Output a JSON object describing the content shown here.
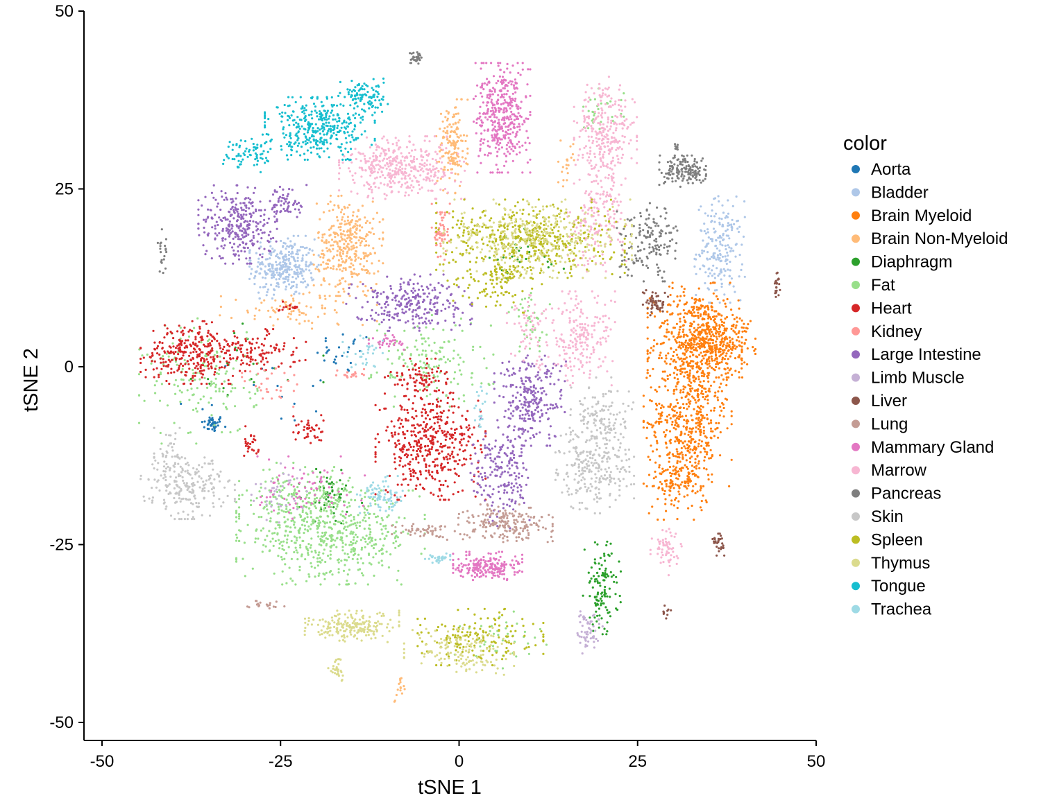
{
  "chart_data": {
    "type": "scatter",
    "title": "",
    "xlabel": "tSNE 1",
    "ylabel": "tSNE 2",
    "xlim": [
      -52.5,
      50
    ],
    "ylim": [
      -52.5,
      50
    ],
    "x_ticks": [
      -50,
      -25,
      0,
      25,
      50
    ],
    "y_ticks": [
      -50,
      -25,
      0,
      25,
      50
    ],
    "x_tick_labels": [
      "-50",
      "-25",
      "0",
      "25",
      "50"
    ],
    "y_tick_labels": [
      "-50",
      "-25",
      "0",
      "25",
      "50"
    ],
    "grid": false,
    "legend": {
      "title": "color",
      "placement": "right"
    },
    "series": [
      {
        "name": "Aorta",
        "color": "#1f77b4",
        "clusters": [
          {
            "center": [
              -34.5,
              -8
            ],
            "spread": [
              0.8,
              0.6
            ],
            "n": 40
          },
          {
            "center": [
              -16,
              2
            ],
            "spread": [
              2,
              1.5
            ],
            "n": 25
          },
          {
            "center": [
              -28,
              -4
            ],
            "spread": [
              6,
              3
            ],
            "n": 15
          }
        ]
      },
      {
        "name": "Bladder",
        "color": "#aec7e8",
        "clusters": [
          {
            "center": [
              -24.5,
              14
            ],
            "spread": [
              2.2,
              2
            ],
            "n": 300
          },
          {
            "center": [
              36.5,
              16.5
            ],
            "spread": [
              1.6,
              3.4
            ],
            "n": 200
          }
        ]
      },
      {
        "name": "Brain Myeloid",
        "color": "#ff7f0e",
        "clusters": [
          {
            "center": [
              33,
              3
            ],
            "spread": [
              3,
              4
            ],
            "n": 500
          },
          {
            "center": [
              32,
              -8
            ],
            "spread": [
              2.8,
              4
            ],
            "n": 400
          },
          {
            "center": [
              31,
              -16
            ],
            "spread": [
              2,
              2.5
            ],
            "n": 150
          },
          {
            "center": [
              36,
              4
            ],
            "spread": [
              2.5,
              2.5
            ],
            "n": 250
          }
        ]
      },
      {
        "name": "Brain Non-Myeloid",
        "color": "#ffbb78",
        "clusters": [
          {
            "center": [
              -15.5,
              17
            ],
            "spread": [
              2.2,
              3.2
            ],
            "n": 350
          },
          {
            "center": [
              -1,
              31
            ],
            "spread": [
              1,
              3
            ],
            "n": 150
          },
          {
            "center": [
              -22.5,
              8
            ],
            "spread": [
              5,
              1.2
            ],
            "n": 80
          },
          {
            "center": [
              15,
              28.5
            ],
            "spread": [
              0.5,
              1.5
            ],
            "n": 20
          },
          {
            "center": [
              -8.5,
              -45.5
            ],
            "spread": [
              0.4,
              1
            ],
            "n": 15
          }
        ]
      },
      {
        "name": "Diaphragm",
        "color": "#2ca02c",
        "clusters": [
          {
            "center": [
              20,
              -31
            ],
            "spread": [
              1.2,
              3
            ],
            "n": 120
          },
          {
            "center": [
              -18,
              -18
            ],
            "spread": [
              2,
              2
            ],
            "n": 50
          },
          {
            "center": [
              8,
              15
            ],
            "spread": [
              4,
              2
            ],
            "n": 30
          },
          {
            "center": [
              -30,
              0
            ],
            "spread": [
              5,
              3
            ],
            "n": 20
          }
        ]
      },
      {
        "name": "Fat",
        "color": "#98df8a",
        "clusters": [
          {
            "center": [
              -18,
              -24
            ],
            "spread": [
              6,
              3
            ],
            "n": 500
          },
          {
            "center": [
              -22,
              -19
            ],
            "spread": [
              4,
              2.5
            ],
            "n": 200
          },
          {
            "center": [
              -4,
              1
            ],
            "spread": [
              4,
              3
            ],
            "n": 150
          },
          {
            "center": [
              -36,
              -2
            ],
            "spread": [
              4,
              4
            ],
            "n": 150
          },
          {
            "center": [
              20,
              36
            ],
            "spread": [
              1.5,
              1.5
            ],
            "n": 30
          },
          {
            "center": [
              10,
              6
            ],
            "spread": [
              1.5,
              2
            ],
            "n": 40
          },
          {
            "center": [
              6,
              -38
            ],
            "spread": [
              3,
              2
            ],
            "n": 40
          }
        ]
      },
      {
        "name": "Heart",
        "color": "#d62728",
        "clusters": [
          {
            "center": [
              -4,
              -11
            ],
            "spread": [
              3.5,
              3.5
            ],
            "n": 450
          },
          {
            "center": [
              -38,
              2
            ],
            "spread": [
              3,
              2
            ],
            "n": 250
          },
          {
            "center": [
              -30,
              2
            ],
            "spread": [
              4,
              1.5
            ],
            "n": 150
          },
          {
            "center": [
              -6,
              -1.5
            ],
            "spread": [
              2,
              1.2
            ],
            "n": 80
          },
          {
            "center": [
              -21,
              -9
            ],
            "spread": [
              1,
              1
            ],
            "n": 40
          },
          {
            "center": [
              -29,
              -11
            ],
            "spread": [
              0.5,
              1.2
            ],
            "n": 25
          },
          {
            "center": [
              -23.5,
              8.5
            ],
            "spread": [
              0.8,
              0.3
            ],
            "n": 15
          }
        ]
      },
      {
        "name": "Kidney",
        "color": "#ff9896",
        "clusters": [
          {
            "center": [
              -2.5,
              19
            ],
            "spread": [
              0.6,
              1.8
            ],
            "n": 60
          },
          {
            "center": [
              -15,
              -1
            ],
            "spread": [
              1,
              0.4
            ],
            "n": 20
          },
          {
            "center": [
              -26,
              -3
            ],
            "spread": [
              2,
              2
            ],
            "n": 30
          }
        ]
      },
      {
        "name": "Large Intestine",
        "color": "#9467bd",
        "clusters": [
          {
            "center": [
              -31,
              20
            ],
            "spread": [
              2.5,
              2.5
            ],
            "n": 300
          },
          {
            "center": [
              -7,
              9
            ],
            "spread": [
              4,
              1.8
            ],
            "n": 250
          },
          {
            "center": [
              10,
              -4.5
            ],
            "spread": [
              2.3,
              3
            ],
            "n": 250
          },
          {
            "center": [
              6,
              -15
            ],
            "spread": [
              2,
              3.5
            ],
            "n": 200
          },
          {
            "center": [
              -24,
              23
            ],
            "spread": [
              1.2,
              1.2
            ],
            "n": 60
          }
        ]
      },
      {
        "name": "Limb Muscle",
        "color": "#c5b0d5",
        "clusters": [
          {
            "center": [
              18,
              -37
            ],
            "spread": [
              1,
              1.5
            ],
            "n": 60
          },
          {
            "center": [
              -25,
              -18
            ],
            "spread": [
              2,
              2
            ],
            "n": 40
          }
        ]
      },
      {
        "name": "Liver",
        "color": "#8c564b",
        "clusters": [
          {
            "center": [
              27.5,
              9
            ],
            "spread": [
              0.8,
              0.8
            ],
            "n": 50
          },
          {
            "center": [
              36.5,
              -25
            ],
            "spread": [
              0.5,
              0.7
            ],
            "n": 30
          },
          {
            "center": [
              44.5,
              11
            ],
            "spread": [
              0.2,
              1.5
            ],
            "n": 20
          },
          {
            "center": [
              29,
              -34.5
            ],
            "spread": [
              0.3,
              0.5
            ],
            "n": 10
          }
        ]
      },
      {
        "name": "Lung",
        "color": "#c49c94",
        "clusters": [
          {
            "center": [
              6.5,
              -22
            ],
            "spread": [
              3,
              1.2
            ],
            "n": 200
          },
          {
            "center": [
              -5,
              -23
            ],
            "spread": [
              2,
              0.6
            ],
            "n": 50
          },
          {
            "center": [
              -27,
              -33.5
            ],
            "spread": [
              1.2,
              0.3
            ],
            "n": 20
          }
        ]
      },
      {
        "name": "Mammary Gland",
        "color": "#e377c2",
        "clusters": [
          {
            "center": [
              6,
              35
            ],
            "spread": [
              1.8,
              3.5
            ],
            "n": 400
          },
          {
            "center": [
              4,
              -28
            ],
            "spread": [
              2.2,
              0.9
            ],
            "n": 200
          },
          {
            "center": [
              -22,
              -17
            ],
            "spread": [
              4,
              2
            ],
            "n": 70
          },
          {
            "center": [
              -10,
              3.5
            ],
            "spread": [
              1.2,
              0.5
            ],
            "n": 30
          }
        ]
      },
      {
        "name": "Marrow",
        "color": "#f7b6d2",
        "clusters": [
          {
            "center": [
              -8,
              28
            ],
            "spread": [
              4,
              2
            ],
            "n": 400
          },
          {
            "center": [
              20.5,
              32
            ],
            "spread": [
              2,
              4
            ],
            "n": 300
          },
          {
            "center": [
              19,
              20
            ],
            "spread": [
              2,
              3
            ],
            "n": 150
          },
          {
            "center": [
              17,
              4
            ],
            "spread": [
              2.2,
              3
            ],
            "n": 200
          },
          {
            "center": [
              29,
              -26
            ],
            "spread": [
              1,
              1.5
            ],
            "n": 60
          },
          {
            "center": [
              10,
              5
            ],
            "spread": [
              1.5,
              2.5
            ],
            "n": 60
          }
        ]
      },
      {
        "name": "Pancreas",
        "color": "#7f7f7f",
        "clusters": [
          {
            "center": [
              32,
              27.5
            ],
            "spread": [
              1.8,
              1
            ],
            "n": 150
          },
          {
            "center": [
              26.5,
              17.5
            ],
            "spread": [
              2,
              2.5
            ],
            "n": 150
          },
          {
            "center": [
              -6,
              43.5
            ],
            "spread": [
              0.6,
              0.4
            ],
            "n": 30
          },
          {
            "center": [
              -41.5,
              16.5
            ],
            "spread": [
              0.4,
              1.5
            ],
            "n": 20
          },
          {
            "center": [
              30.5,
              31
            ],
            "spread": [
              0.3,
              0.3
            ],
            "n": 8
          }
        ]
      },
      {
        "name": "Skin",
        "color": "#c7c7c7",
        "clusters": [
          {
            "center": [
              19,
              -14
            ],
            "spread": [
              2.5,
              3
            ],
            "n": 250
          },
          {
            "center": [
              -38,
              -17
            ],
            "spread": [
              3,
              2
            ],
            "n": 200
          },
          {
            "center": [
              20,
              -7
            ],
            "spread": [
              2,
              2.5
            ],
            "n": 120
          },
          {
            "center": [
              -40.5,
              -13
            ],
            "spread": [
              1,
              2
            ],
            "n": 50
          }
        ]
      },
      {
        "name": "Spleen",
        "color": "#bcbd22",
        "clusters": [
          {
            "center": [
              10,
              18
            ],
            "spread": [
              6,
              2.5
            ],
            "n": 450
          },
          {
            "center": [
              3,
              -38
            ],
            "spread": [
              4,
              1.8
            ],
            "n": 150
          },
          {
            "center": [
              5,
              12
            ],
            "spread": [
              3,
              2
            ],
            "n": 100
          }
        ]
      },
      {
        "name": "Thymus",
        "color": "#dbdb8d",
        "clusters": [
          {
            "center": [
              11,
              18
            ],
            "spread": [
              6,
              2.5
            ],
            "n": 350
          },
          {
            "center": [
              -15,
              -36.5
            ],
            "spread": [
              3,
              1
            ],
            "n": 200
          },
          {
            "center": [
              0,
              -40
            ],
            "spread": [
              3.5,
              1.5
            ],
            "n": 150
          },
          {
            "center": [
              -17,
              -42.5
            ],
            "spread": [
              0.6,
              0.8
            ],
            "n": 30
          }
        ]
      },
      {
        "name": "Tongue",
        "color": "#17becf",
        "clusters": [
          {
            "center": [
              -19.5,
              33.5
            ],
            "spread": [
              3.5,
              2
            ],
            "n": 350
          },
          {
            "center": [
              -13.5,
              38
            ],
            "spread": [
              1.6,
              1.2
            ],
            "n": 100
          },
          {
            "center": [
              -29,
              30
            ],
            "spread": [
              2.5,
              1.2
            ],
            "n": 80
          }
        ]
      },
      {
        "name": "Trachea",
        "color": "#9edae5",
        "clusters": [
          {
            "center": [
              -11,
              -18
            ],
            "spread": [
              1.5,
              1.2
            ],
            "n": 80
          },
          {
            "center": [
              -3,
              -27
            ],
            "spread": [
              0.8,
              0.4
            ],
            "n": 30
          },
          {
            "center": [
              3,
              -5.5
            ],
            "spread": [
              0.4,
              1.5
            ],
            "n": 20
          },
          {
            "center": [
              -13,
              2
            ],
            "spread": [
              1.5,
              1.2
            ],
            "n": 30
          }
        ]
      }
    ]
  }
}
